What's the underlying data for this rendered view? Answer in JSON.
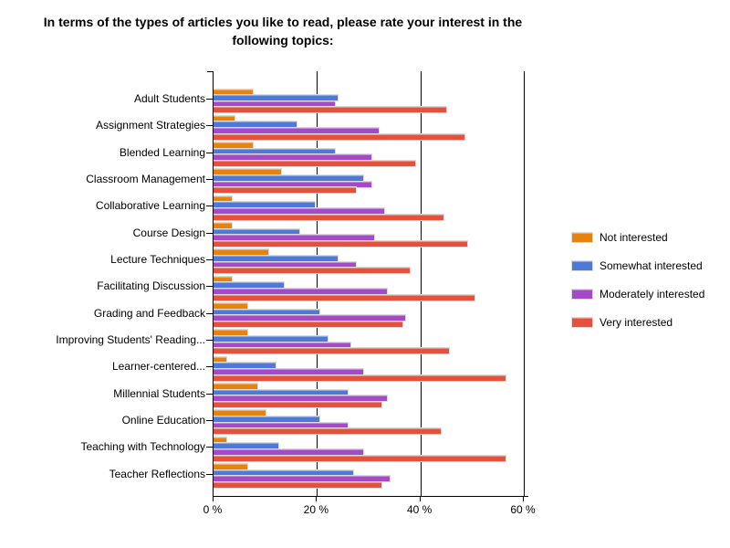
{
  "chart_data": {
    "type": "bar",
    "orientation": "horizontal",
    "title": "In terms of the types of articles you like to read, please rate your interest in the following topics:",
    "categories": [
      "Adult Students",
      "Assignment Strategies",
      "Blended Learning",
      "Classroom Management",
      "Collaborative Learning",
      "Course Design",
      "Lecture Techniques",
      "Facilitating Discussion",
      "Grading and Feedback",
      "Improving Students' Reading...",
      "Learner-centered...",
      "Millennial Students",
      "Online Education",
      "Teaching with Technology",
      "Teacher Reflections"
    ],
    "series": [
      {
        "name": "Not interested",
        "color": "#E8820E",
        "values": [
          7.5,
          4,
          7.5,
          13,
          3.5,
          3.5,
          10.5,
          3.5,
          6.5,
          6.5,
          2.5,
          8.5,
          10,
          2.5,
          6.5
        ]
      },
      {
        "name": "Somewhat interested",
        "color": "#4E79D6",
        "values": [
          24,
          16,
          23.5,
          29,
          19.5,
          16.5,
          24,
          13.5,
          20.5,
          22,
          12,
          26,
          20.5,
          12.5,
          27
        ]
      },
      {
        "name": "Moderately interested",
        "color": "#A44AC8",
        "values": [
          23.5,
          32,
          30.5,
          30.5,
          33,
          31,
          27.5,
          33.5,
          37,
          26.5,
          29,
          33.5,
          26,
          29,
          34
        ]
      },
      {
        "name": "Very interested",
        "color": "#E5513D",
        "values": [
          45,
          48.5,
          39,
          27.5,
          44.5,
          49,
          38,
          50.5,
          36.5,
          45.5,
          56.5,
          32.5,
          44,
          56.5,
          32.5
        ]
      }
    ],
    "x_ticks": [
      "0 %",
      "20 %",
      "40 %",
      "60 %"
    ],
    "x_tick_values": [
      0,
      20,
      40,
      60
    ],
    "xlim": [
      0,
      60
    ],
    "grid": true,
    "legend_position": "right",
    "axis_color": "#000000",
    "bar_border_color": "#DBDBDB"
  }
}
